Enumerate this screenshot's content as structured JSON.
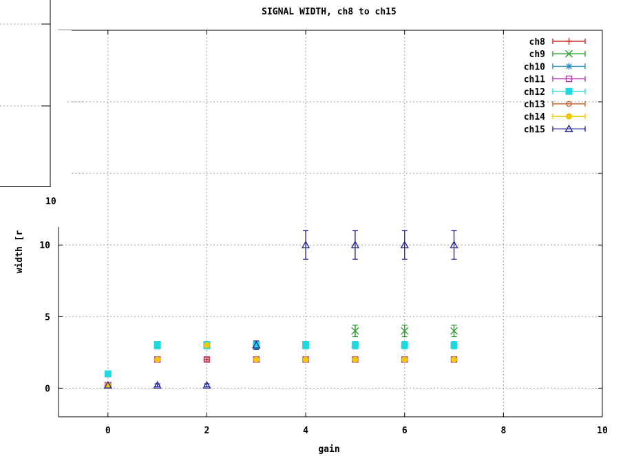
{
  "chart_data": {
    "type": "scatter",
    "title": "SIGNAL WIDTH, ch8 to ch15",
    "xlabel": "gain",
    "ylabel": "width [r",
    "xlim": [
      -1,
      10
    ],
    "ylim": [
      -2,
      25
    ],
    "x_ticks": [
      0,
      2,
      4,
      6,
      8,
      10
    ],
    "y_ticks": [
      0,
      5,
      10
    ],
    "grid": true,
    "legend_position": "top-right",
    "error_bars": true,
    "series": [
      {
        "name": "ch8",
        "color": "#c83232",
        "marker": "plus",
        "points": [
          {
            "x": 0,
            "y": 0.2,
            "err": 0.1
          },
          {
            "x": 1,
            "y": 2,
            "err": 0.15
          },
          {
            "x": 2,
            "y": 2,
            "err": 0.15
          },
          {
            "x": 3,
            "y": 2,
            "err": 0.15
          },
          {
            "x": 4,
            "y": 2,
            "err": 0.15
          },
          {
            "x": 5,
            "y": 2,
            "err": 0.15
          },
          {
            "x": 6,
            "y": 2,
            "err": 0.15
          },
          {
            "x": 7,
            "y": 2,
            "err": 0.15
          }
        ]
      },
      {
        "name": "ch9",
        "color": "#2ca02c",
        "marker": "x",
        "points": [
          {
            "x": 0,
            "y": 0.2,
            "err": 0.1
          },
          {
            "x": 1,
            "y": 3,
            "err": 0.2
          },
          {
            "x": 2,
            "y": 3,
            "err": 0.2
          },
          {
            "x": 3,
            "y": 3,
            "err": 0.2
          },
          {
            "x": 4,
            "y": 3,
            "err": 0.2
          },
          {
            "x": 5,
            "y": 4,
            "err": 0.4
          },
          {
            "x": 6,
            "y": 4,
            "err": 0.4
          },
          {
            "x": 7,
            "y": 4,
            "err": 0.4
          }
        ]
      },
      {
        "name": "ch10",
        "color": "#2b8cbe",
        "marker": "star",
        "points": [
          {
            "x": 0,
            "y": 0.2,
            "err": 0.1
          },
          {
            "x": 1,
            "y": 3,
            "err": 0.2
          },
          {
            "x": 2,
            "y": 3,
            "err": 0.2
          },
          {
            "x": 3,
            "y": 3,
            "err": 0.2
          },
          {
            "x": 4,
            "y": 3,
            "err": 0.2
          },
          {
            "x": 5,
            "y": 3,
            "err": 0.2
          },
          {
            "x": 6,
            "y": 3,
            "err": 0.2
          },
          {
            "x": 7,
            "y": 3,
            "err": 0.2
          }
        ]
      },
      {
        "name": "ch11",
        "color": "#b03cb0",
        "marker": "square-open",
        "points": [
          {
            "x": 0,
            "y": 0.2,
            "err": 0.1
          },
          {
            "x": 1,
            "y": 2,
            "err": 0.15
          },
          {
            "x": 2,
            "y": 2,
            "err": 0.15
          },
          {
            "x": 3,
            "y": 2,
            "err": 0.15
          },
          {
            "x": 4,
            "y": 2,
            "err": 0.15
          },
          {
            "x": 5,
            "y": 2,
            "err": 0.15
          },
          {
            "x": 6,
            "y": 2,
            "err": 0.15
          },
          {
            "x": 7,
            "y": 2,
            "err": 0.15
          }
        ]
      },
      {
        "name": "ch12",
        "color": "#20d8e0",
        "marker": "square-filled",
        "points": [
          {
            "x": 0,
            "y": 1,
            "err": 0.1
          },
          {
            "x": 1,
            "y": 3,
            "err": 0.25
          },
          {
            "x": 2,
            "y": 3,
            "err": 0.25
          },
          {
            "x": 3,
            "y": 3,
            "err": 0.25
          },
          {
            "x": 4,
            "y": 3,
            "err": 0.25
          },
          {
            "x": 5,
            "y": 3,
            "err": 0.25
          },
          {
            "x": 6,
            "y": 3,
            "err": 0.25
          },
          {
            "x": 7,
            "y": 3,
            "err": 0.25
          }
        ]
      },
      {
        "name": "ch13",
        "color": "#c86428",
        "marker": "circle-open",
        "points": [
          {
            "x": 0,
            "y": 0.2,
            "err": 0.1
          },
          {
            "x": 1,
            "y": 2,
            "err": 0.15
          },
          {
            "x": 2,
            "y": 2,
            "err": 0.15
          },
          {
            "x": 3,
            "y": 2,
            "err": 0.15
          },
          {
            "x": 4,
            "y": 2,
            "err": 0.15
          },
          {
            "x": 5,
            "y": 2,
            "err": 0.15
          },
          {
            "x": 6,
            "y": 2,
            "err": 0.15
          },
          {
            "x": 7,
            "y": 2,
            "err": 0.15
          }
        ]
      },
      {
        "name": "ch14",
        "color": "#f0c800",
        "marker": "circle-filled",
        "points": [
          {
            "x": 0,
            "y": 0.2,
            "err": 0.1
          },
          {
            "x": 1,
            "y": 2,
            "err": 0.15
          },
          {
            "x": 2,
            "y": 3,
            "err": 0.15
          },
          {
            "x": 3,
            "y": 2,
            "err": 0.15
          },
          {
            "x": 4,
            "y": 2,
            "err": 0.15
          },
          {
            "x": 5,
            "y": 2,
            "err": 0.15
          },
          {
            "x": 6,
            "y": 2,
            "err": 0.15
          },
          {
            "x": 7,
            "y": 2,
            "err": 0.15
          }
        ]
      },
      {
        "name": "ch15",
        "color": "#282896",
        "marker": "triangle-open",
        "points": [
          {
            "x": 0,
            "y": 0.2,
            "err": 0.1
          },
          {
            "x": 1,
            "y": 0.2,
            "err": 0.1
          },
          {
            "x": 2,
            "y": 0.2,
            "err": 0.1
          },
          {
            "x": 3,
            "y": 3,
            "err": 0.3
          },
          {
            "x": 4,
            "y": 10,
            "err": 1
          },
          {
            "x": 5,
            "y": 10,
            "err": 1
          },
          {
            "x": 6,
            "y": 10,
            "err": 1
          },
          {
            "x": 7,
            "y": 10,
            "err": 1
          }
        ]
      }
    ]
  },
  "overlay_fragment": {
    "label_10": "10"
  }
}
